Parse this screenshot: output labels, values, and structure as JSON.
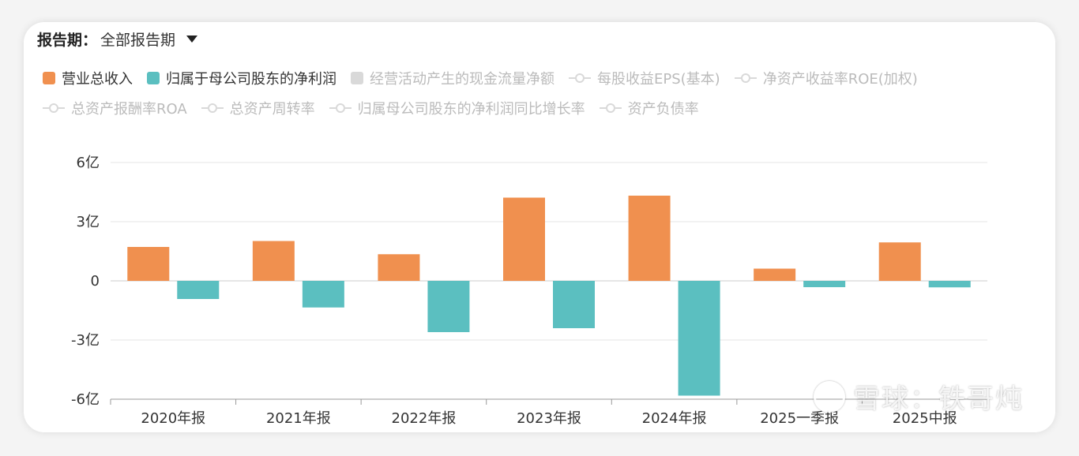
{
  "header": {
    "period_label": "报告期：",
    "period_value": "全部报告期"
  },
  "colors": {
    "revenue": "#F0904F",
    "net_profit": "#5BBFC0",
    "inactive": "#d9d9d9"
  },
  "legend": [
    {
      "label": "营业总收入",
      "active": true,
      "shape": "rect",
      "color": "#F0904F"
    },
    {
      "label": "归属于母公司股东的净利润",
      "active": true,
      "shape": "rect",
      "color": "#5BBFC0"
    },
    {
      "label": "经营活动产生的现金流量净额",
      "active": false,
      "shape": "rect",
      "color": "#d9d9d9"
    },
    {
      "label": "每股收益EPS(基本)",
      "active": false,
      "shape": "line"
    },
    {
      "label": "净资产收益率ROE(加权)",
      "active": false,
      "shape": "line"
    },
    {
      "label": "总资产报酬率ROA",
      "active": false,
      "shape": "line"
    },
    {
      "label": "总资产周转率",
      "active": false,
      "shape": "line"
    },
    {
      "label": "归属母公司股东的净利润同比增长率",
      "active": false,
      "shape": "line"
    },
    {
      "label": "资产负债率",
      "active": false,
      "shape": "line"
    }
  ],
  "chart_data": {
    "type": "bar",
    "categories": [
      "2020年报",
      "2021年报",
      "2022年报",
      "2023年报",
      "2024年报",
      "2025一季报",
      "2025中报"
    ],
    "series": [
      {
        "name": "营业总收入",
        "color": "#F0904F",
        "values": [
          1.72,
          2.02,
          1.35,
          4.22,
          4.32,
          0.62,
          1.95
        ]
      },
      {
        "name": "归属于母公司股东的净利润",
        "color": "#5BBFC0",
        "values": [
          -0.92,
          -1.35,
          -2.6,
          -2.4,
          -5.82,
          -0.32,
          -0.33
        ]
      }
    ],
    "ylim": [
      -6,
      6
    ],
    "yticks": [
      6,
      3,
      0,
      -3,
      -6
    ],
    "ytick_labels": [
      "6亿",
      "3亿",
      "0",
      "-3亿",
      "-6亿"
    ],
    "grid": true,
    "legend_position": "top-left"
  },
  "watermark": {
    "text": "雪球：铁哥炖"
  }
}
